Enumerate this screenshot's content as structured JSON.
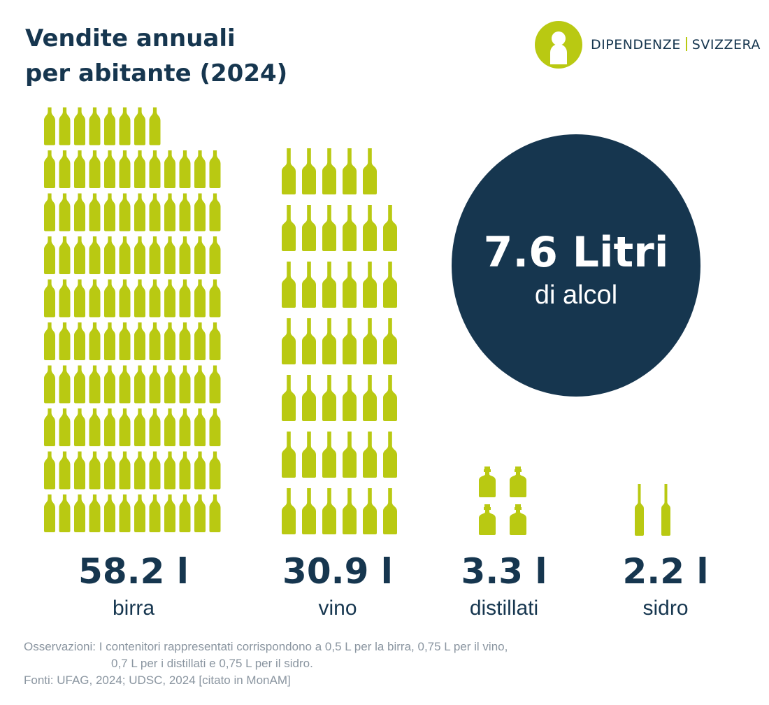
{
  "title": {
    "line1": "Vendite annuali",
    "line2": "per abitante (2024)"
  },
  "logo": {
    "name_left": "DIPENDENZE",
    "name_right": "SVIZZERA",
    "icon": "person-circle-icon"
  },
  "highlight": {
    "value": "7.6 Litri",
    "label": "di alcol"
  },
  "colors": {
    "bottle": "#b9c912",
    "dark": "#16364f",
    "note": "#8a95a0"
  },
  "chart_data": {
    "type": "pictogram",
    "unit": "l",
    "categories": [
      "birra",
      "vino",
      "distillati",
      "sidro"
    ],
    "values": [
      58.2,
      30.9,
      3.3,
      2.2
    ],
    "value_labels": [
      "58.2 l",
      "30.9 l",
      "3.3 l",
      "2.2 l"
    ],
    "container_liters": [
      0.5,
      0.75,
      0.7,
      0.75
    ],
    "icons": [
      "beer-bottle-icon",
      "wine-bottle-icon",
      "spirits-bottle-icon",
      "cider-bottle-icon"
    ]
  },
  "notes": {
    "line1": "Osservazioni: I contenitori rappresentati corrispondono a 0,5 L per la birra, 0,75 L per il vino,",
    "line2": "0,7 L per i distillati e 0,75 L per il sidro.",
    "line3": "Fonti: UFAG, 2024; UDSC, 2024 [citato in MonAM]"
  }
}
